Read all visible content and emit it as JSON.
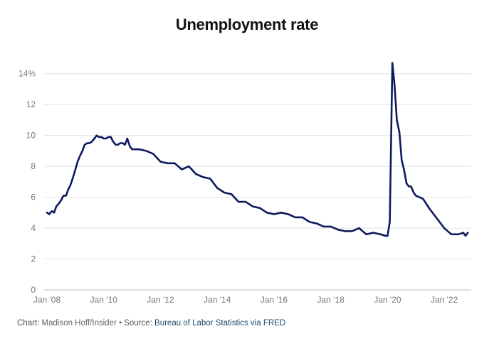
{
  "chart_data": {
    "type": "line",
    "title": "Unemployment rate",
    "xlabel": "",
    "ylabel": "",
    "xlim": [
      2007.9,
      2022.95
    ],
    "ylim": [
      0,
      15
    ],
    "y_ticks": [
      0,
      2,
      4,
      6,
      8,
      10,
      12,
      14
    ],
    "y_tick_labels": [
      "0",
      "2",
      "4",
      "6",
      "8",
      "10",
      "12",
      "14%"
    ],
    "x_ticks": [
      2008,
      2010,
      2012,
      2014,
      2016,
      2018,
      2020,
      2022
    ],
    "x_tick_labels": [
      "Jan '08",
      "Jan '10",
      "Jan '12",
      "Jan '14",
      "Jan '16",
      "Jan '18",
      "Jan '20",
      "Jan '22"
    ],
    "grid": true,
    "color": "#0c1a5e",
    "series": [
      {
        "name": "",
        "x": [
          2008.0,
          2008.08,
          2008.17,
          2008.25,
          2008.33,
          2008.42,
          2008.5,
          2008.58,
          2008.67,
          2008.75,
          2008.83,
          2008.92,
          2009.0,
          2009.08,
          2009.17,
          2009.25,
          2009.33,
          2009.42,
          2009.5,
          2009.58,
          2009.67,
          2009.75,
          2009.83,
          2009.92,
          2010.0,
          2010.08,
          2010.17,
          2010.25,
          2010.33,
          2010.42,
          2010.5,
          2010.58,
          2010.67,
          2010.75,
          2010.83,
          2010.92,
          2011.0,
          2011.25,
          2011.5,
          2011.75,
          2012.0,
          2012.25,
          2012.5,
          2012.75,
          2013.0,
          2013.25,
          2013.5,
          2013.75,
          2014.0,
          2014.25,
          2014.5,
          2014.75,
          2015.0,
          2015.25,
          2015.5,
          2015.75,
          2016.0,
          2016.25,
          2016.5,
          2016.75,
          2017.0,
          2017.25,
          2017.5,
          2017.75,
          2018.0,
          2018.25,
          2018.5,
          2018.75,
          2019.0,
          2019.25,
          2019.5,
          2019.75,
          2019.92,
          2020.0,
          2020.08,
          2020.17,
          2020.25,
          2020.33,
          2020.42,
          2020.5,
          2020.58,
          2020.67,
          2020.75,
          2020.83,
          2020.92,
          2021.0,
          2021.25,
          2021.5,
          2021.75,
          2022.0,
          2022.25,
          2022.5,
          2022.67,
          2022.75,
          2022.83
        ],
        "values": [
          5.0,
          4.9,
          5.1,
          5.0,
          5.4,
          5.6,
          5.8,
          6.1,
          6.1,
          6.5,
          6.8,
          7.3,
          7.8,
          8.3,
          8.7,
          9.0,
          9.4,
          9.5,
          9.5,
          9.6,
          9.8,
          10.0,
          9.9,
          9.9,
          9.8,
          9.8,
          9.9,
          9.9,
          9.6,
          9.4,
          9.4,
          9.5,
          9.5,
          9.4,
          9.8,
          9.3,
          9.1,
          9.1,
          9.0,
          8.8,
          8.3,
          8.2,
          8.2,
          7.8,
          8.0,
          7.5,
          7.3,
          7.2,
          6.6,
          6.3,
          6.2,
          5.7,
          5.7,
          5.4,
          5.3,
          5.0,
          4.9,
          5.0,
          4.9,
          4.7,
          4.7,
          4.4,
          4.3,
          4.1,
          4.1,
          3.9,
          3.8,
          3.8,
          4.0,
          3.6,
          3.7,
          3.6,
          3.5,
          3.5,
          4.4,
          14.7,
          13.2,
          11.0,
          10.2,
          8.4,
          7.8,
          6.9,
          6.7,
          6.7,
          6.3,
          6.1,
          5.9,
          5.2,
          4.6,
          4.0,
          3.6,
          3.6,
          3.7,
          3.5,
          3.7
        ]
      }
    ]
  },
  "footer": {
    "chart_label": "Chart:",
    "chart_author": " Madison Hoff/Insider",
    "separator": " • ",
    "source_label": "Source:",
    "source_text": " Bureau of Labor Statistics via FRED"
  }
}
